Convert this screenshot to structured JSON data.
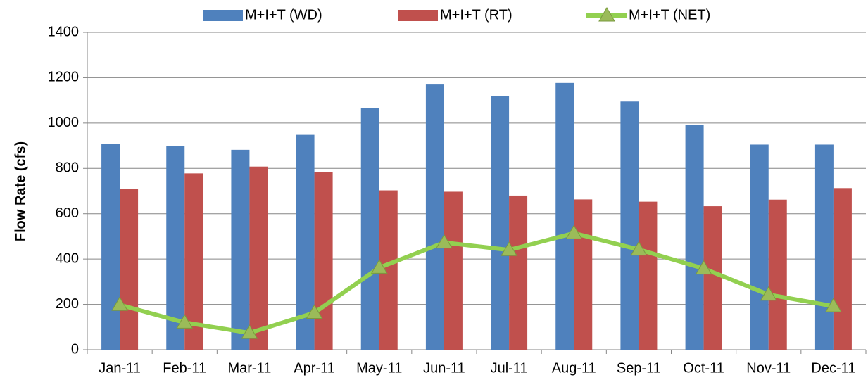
{
  "chart_data": {
    "type": "bar",
    "y_label": "Flow Rate (cfs)",
    "categories": [
      "Jan-11",
      "Feb-11",
      "Mar-11",
      "Apr-11",
      "May-11",
      "Jun-11",
      "Jul-11",
      "Aug-11",
      "Sep-11",
      "Oct-11",
      "Nov-11",
      "Dec-11"
    ],
    "series": [
      {
        "name": "M+I+T (WD)",
        "color": "#4f81bd",
        "values": [
          908,
          898,
          882,
          948,
          1067,
          1170,
          1120,
          1177,
          1095,
          993,
          905,
          905
        ]
      },
      {
        "name": "M+I+T (RT)",
        "color": "#c0504d",
        "values": [
          710,
          778,
          808,
          785,
          703,
          697,
          680,
          663,
          653,
          633,
          662,
          713
        ]
      },
      {
        "name": "M+I+T (NET)",
        "color": "#92d050",
        "type": "line",
        "values": [
          198,
          120,
          74,
          163,
          362,
          473,
          440,
          514,
          442,
          358,
          243,
          192
        ]
      }
    ],
    "ylim": [
      0,
      1400
    ],
    "yticks": [
      0,
      200,
      400,
      600,
      800,
      1000,
      1200,
      1400
    ],
    "grid": true,
    "legend": "top"
  }
}
